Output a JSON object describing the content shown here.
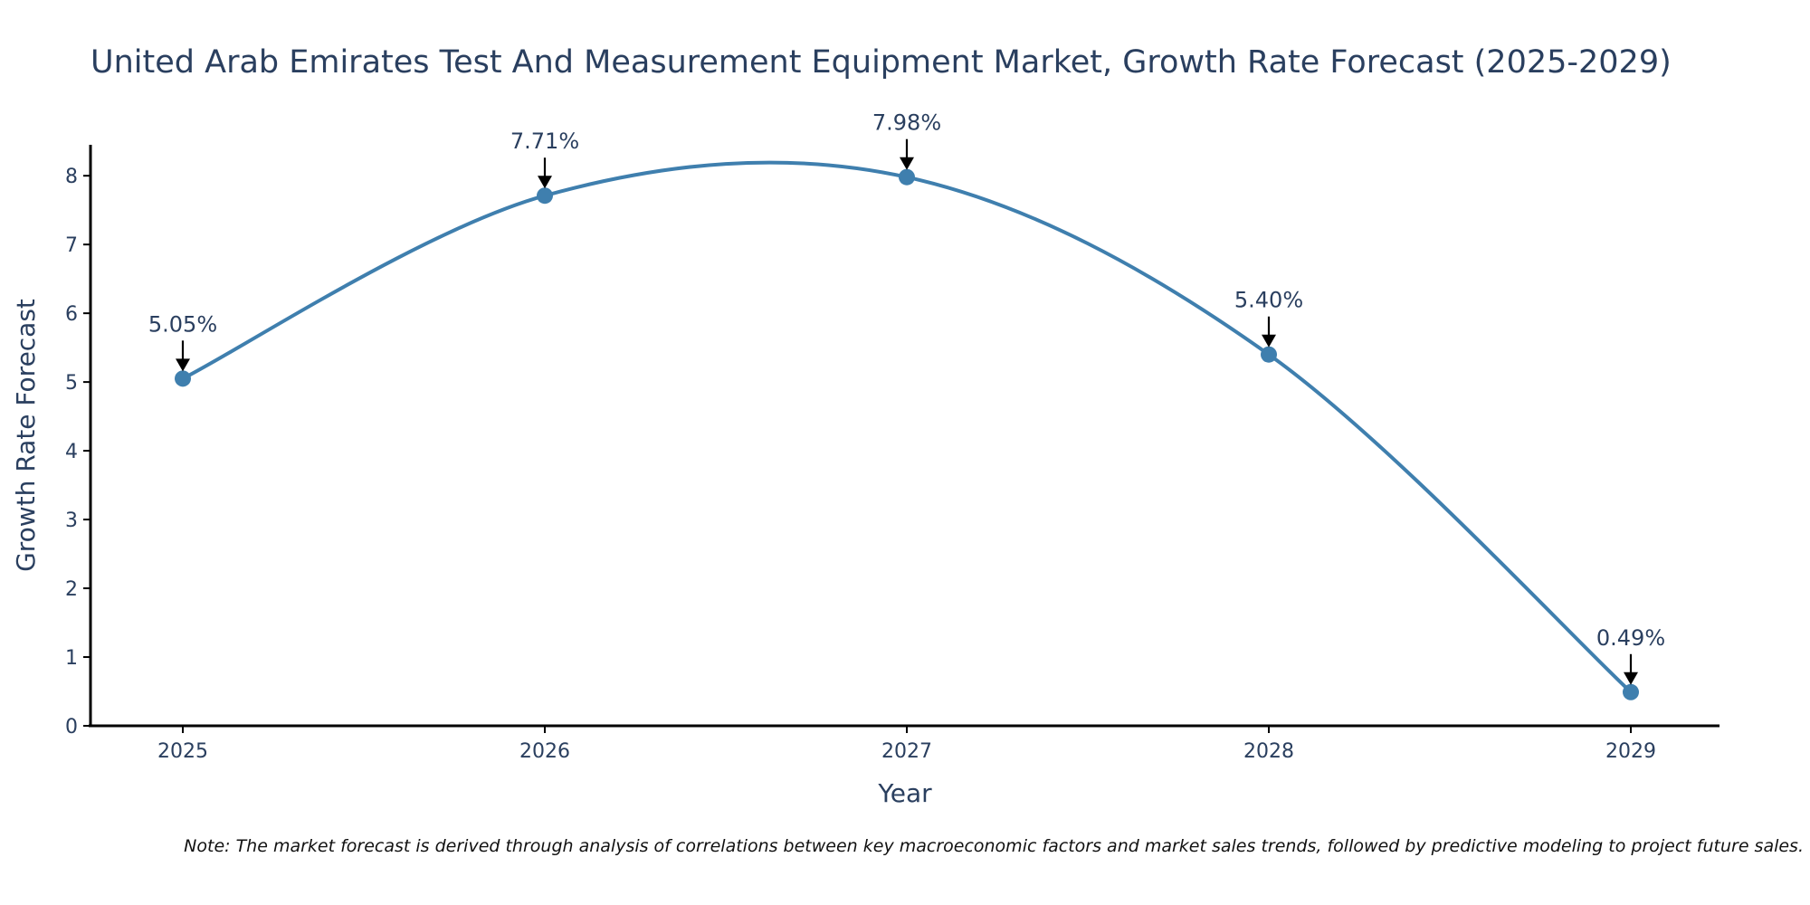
{
  "colors": {
    "series": "#3f7fae",
    "text": "#2a3f5f",
    "axis": "#000000"
  },
  "chart_data": {
    "type": "line",
    "title": "United Arab Emirates Test And Measurement Equipment Market, Growth Rate Forecast (2025-2029)",
    "xlabel": "Year",
    "ylabel": "Growth Rate Forecast",
    "categories": [
      "2025",
      "2026",
      "2027",
      "2028",
      "2029"
    ],
    "values": [
      5.05,
      7.71,
      7.98,
      5.4,
      0.49
    ],
    "data_labels": [
      "5.05%",
      "7.71%",
      "7.98%",
      "5.40%",
      "0.49%"
    ],
    "ylim": [
      0,
      8.45
    ],
    "yticks": [
      "0",
      "1",
      "2",
      "3",
      "4",
      "5",
      "6",
      "7",
      "8"
    ],
    "grid": false,
    "line_shape": "spline",
    "note": "Note: The market forecast is derived through analysis of correlations between key macroeconomic factors and market sales trends, followed by predictive modeling to project future sales."
  }
}
